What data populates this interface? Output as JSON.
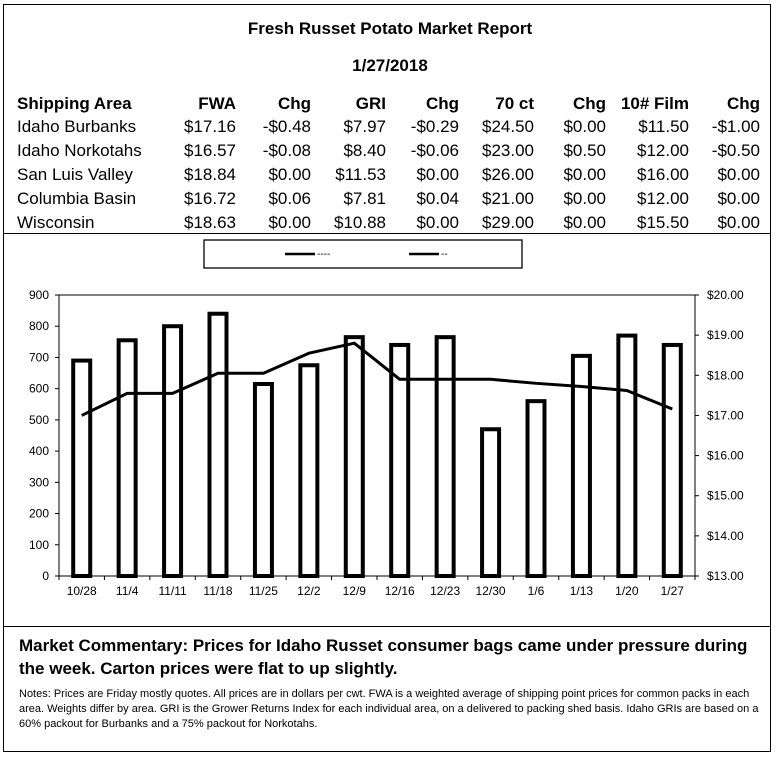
{
  "report": {
    "title": "Fresh Russet Potato Market Report",
    "date": "1/27/2018"
  },
  "table": {
    "headers": [
      "Shipping Area",
      "FWA",
      "Chg",
      "GRI",
      "Chg",
      "70 ct",
      "Chg",
      "10# Film",
      "Chg"
    ],
    "rows": [
      [
        "Idaho Burbanks",
        "$17.16",
        "-$0.48",
        "$7.97",
        "-$0.29",
        "$24.50",
        "$0.00",
        "$11.50",
        "-$1.00"
      ],
      [
        "Idaho Norkotahs",
        "$16.57",
        "-$0.08",
        "$8.40",
        "-$0.06",
        "$23.00",
        "$0.50",
        "$12.00",
        "-$0.50"
      ],
      [
        "San Luis Valley",
        "$18.84",
        "$0.00",
        "$11.53",
        "$0.00",
        "$26.00",
        "$0.00",
        "$16.00",
        "$0.00"
      ],
      [
        "Columbia Basin",
        "$16.72",
        "$0.06",
        "$7.81",
        "$0.04",
        "$21.00",
        "$0.00",
        "$12.00",
        "$0.00"
      ],
      [
        "Wisconsin",
        "$18.63",
        "$0.00",
        "$10.88",
        "$0.00",
        "$29.00",
        "$0.00",
        "$15.50",
        "$0.00"
      ]
    ]
  },
  "chart_data": {
    "type": "bar",
    "categories": [
      "10/28",
      "11/4",
      "11/11",
      "11/18",
      "11/25",
      "12/2",
      "12/9",
      "12/16",
      "12/23",
      "12/30",
      "1/6",
      "1/13",
      "1/20",
      "1/27"
    ],
    "series": [
      {
        "name": "----",
        "type": "bar",
        "axis": "left",
        "values": [
          690,
          755,
          800,
          840,
          615,
          675,
          765,
          740,
          765,
          470,
          560,
          705,
          770,
          740
        ]
      },
      {
        "name": "--",
        "type": "line",
        "axis": "right",
        "values": [
          17.0,
          17.55,
          17.55,
          18.05,
          18.05,
          18.55,
          18.8,
          17.9,
          17.9,
          17.9,
          17.8,
          17.72,
          17.62,
          17.16
        ]
      }
    ],
    "ylim_left": [
      0,
      900
    ],
    "yticks_left": [
      0,
      100,
      200,
      300,
      400,
      500,
      600,
      700,
      800,
      900
    ],
    "ylim_right": [
      13,
      20
    ],
    "yticks_right": [
      "$13.00",
      "$14.00",
      "$15.00",
      "$16.00",
      "$17.00",
      "$18.00",
      "$19.00",
      "$20.00"
    ],
    "legend": "top-center",
    "grid": false,
    "colors": {
      "bar_fill": "#ffffff",
      "stroke": "#000000"
    }
  },
  "commentary": "Market Commentary: Prices for Idaho Russet consumer bags came under pressure during the week. Carton prices were flat to up slightly.",
  "notes": "Notes: Prices are Friday mostly quotes. All prices are in dollars per cwt. FWA is a weighted average of shipping point prices for  common packs in each area. Weights differ by area. GRI is the Grower Returns Index for each individual area, on a delivered to packing shed basis. Idaho GRIs are based on a 60% packout for Burbanks and a 75% packout for Norkotahs."
}
